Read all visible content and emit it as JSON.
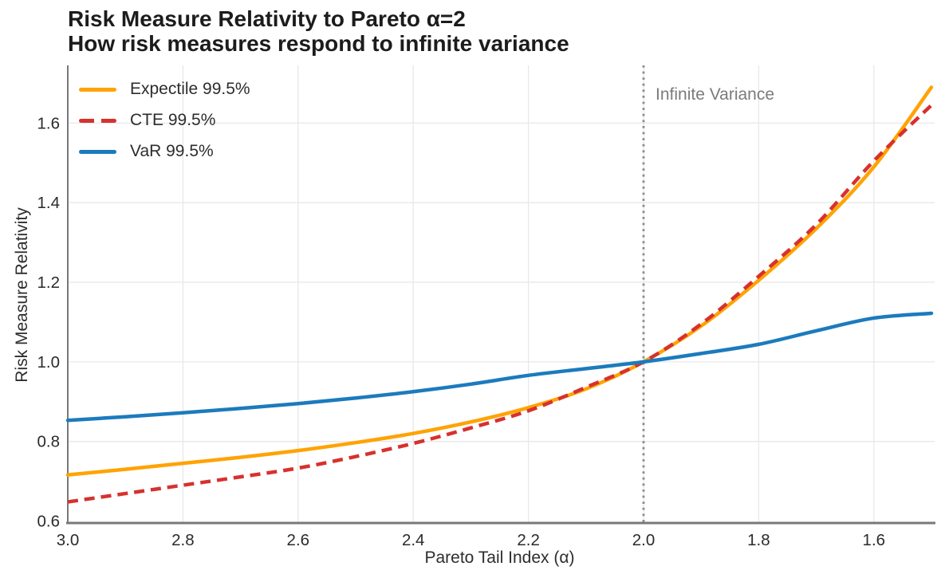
{
  "chart_data": {
    "type": "line",
    "title": "Risk Measure Relativity to Pareto α=2",
    "subtitle": "How risk measures respond to infinite variance",
    "xlabel": "Pareto Tail Index (α)",
    "ylabel": "Risk Measure Relativity",
    "x_axis": {
      "reversed": true,
      "left_value": 3.0,
      "right_value": 1.5,
      "ticks": [
        3.0,
        2.8,
        2.6,
        2.4,
        2.2,
        2.0,
        1.8,
        1.6
      ],
      "tick_labels": [
        "3.0",
        "2.8",
        "2.6",
        "2.4",
        "2.2",
        "2.0",
        "1.8",
        "1.6"
      ]
    },
    "y_axis": {
      "min": 0.595,
      "max": 1.745,
      "ticks": [
        0.6,
        0.8,
        1.0,
        1.2,
        1.4,
        1.6
      ],
      "tick_labels": [
        "0.6",
        "0.8",
        "1.0",
        "1.2",
        "1.4",
        "1.6"
      ]
    },
    "grid": true,
    "legend_position": "upper left",
    "x": [
      3.0,
      2.9,
      2.8,
      2.7,
      2.6,
      2.5,
      2.4,
      2.3,
      2.2,
      2.1,
      2.0,
      1.9,
      1.8,
      1.7,
      1.6,
      1.5
    ],
    "series": [
      {
        "name": "Expectile 99.5%",
        "color": "#FFA303",
        "style": "solid",
        "values": [
          0.716,
          0.73,
          0.745,
          0.76,
          0.777,
          0.797,
          0.82,
          0.849,
          0.885,
          0.932,
          1.0,
          1.09,
          1.205,
          1.335,
          1.49,
          1.69
        ]
      },
      {
        "name": "CTE 99.5%",
        "color": "#D7312E",
        "style": "dashed",
        "values": [
          0.648,
          0.669,
          0.69,
          0.711,
          0.733,
          0.762,
          0.795,
          0.834,
          0.877,
          0.936,
          1.0,
          1.095,
          1.215,
          1.345,
          1.505,
          1.645
        ]
      },
      {
        "name": "VaR 99.5%",
        "color": "#1B7BBD",
        "style": "solid",
        "values": [
          0.853,
          0.862,
          0.872,
          0.883,
          0.895,
          0.909,
          0.925,
          0.944,
          0.966,
          0.983,
          1.0,
          1.021,
          1.044,
          1.078,
          1.11,
          1.122
        ]
      }
    ],
    "reference_line": {
      "x": 2.0,
      "style": "dotted",
      "color": "#8c8c8c"
    },
    "annotation": {
      "text": "Infinite Variance",
      "at_x": 2.0,
      "color": "#7b7b7b"
    },
    "style": {
      "grid_color": "#e8e8ea",
      "spine_color": "#787878",
      "tick_color": "#2b2b2b",
      "background": "#ffffff"
    }
  }
}
